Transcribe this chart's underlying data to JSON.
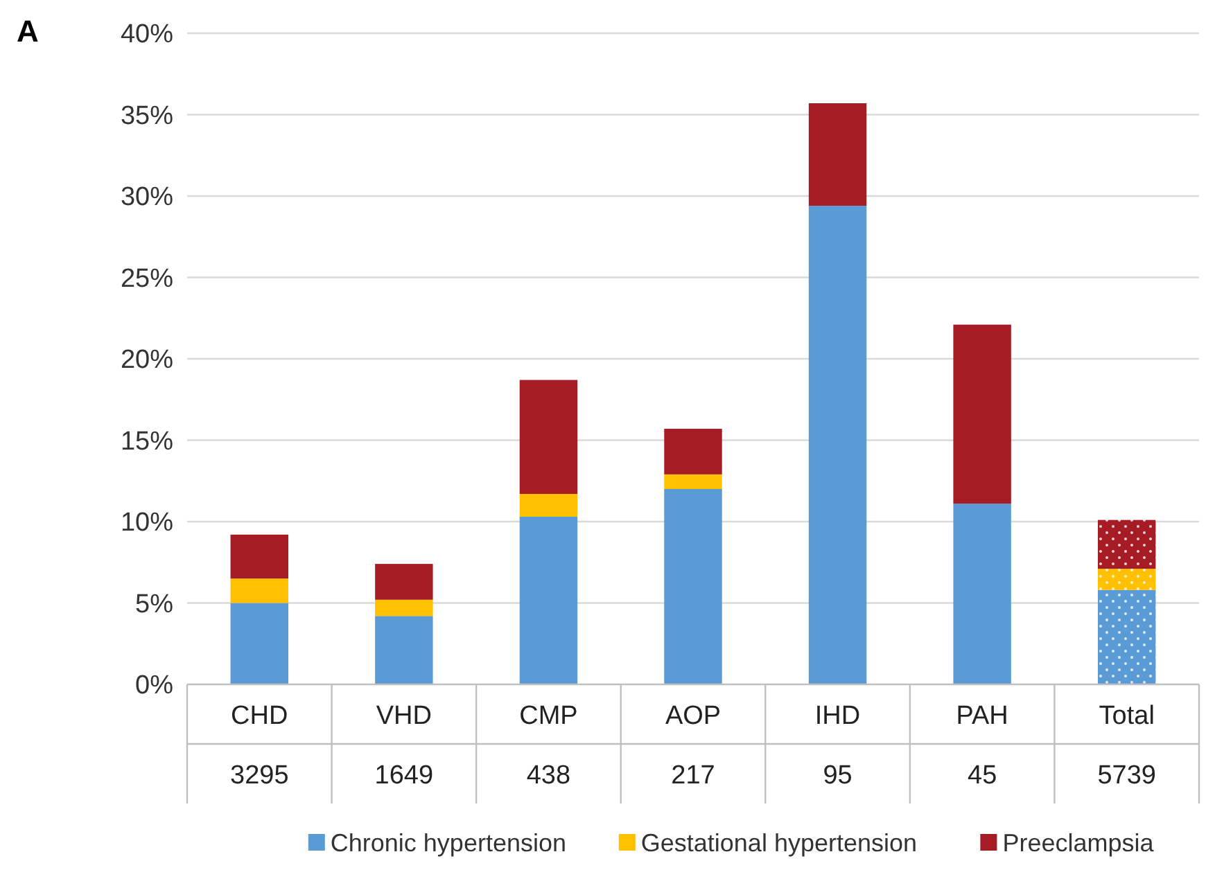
{
  "chart_data": {
    "type": "bar",
    "title": "A",
    "stacked": true,
    "categories": [
      "CHD",
      "VHD",
      "CMP",
      "AOP",
      "IHD",
      "PAH",
      "Total"
    ],
    "series": [
      {
        "name": "Chronic hypertension",
        "color": "#5b9bd5",
        "values": [
          5.0,
          4.2,
          10.3,
          12.0,
          29.4,
          11.1,
          5.8
        ]
      },
      {
        "name": "Gestational hypertension",
        "color": "#ffc000",
        "values": [
          1.5,
          1.0,
          1.4,
          0.9,
          0,
          0,
          1.3
        ]
      },
      {
        "name": "Preeclampsia",
        "color": "#a51c24",
        "values": [
          2.7,
          2.2,
          7.0,
          2.8,
          6.3,
          11.0,
          3.0
        ]
      }
    ],
    "ylim": [
      0,
      40
    ],
    "yticks": [
      {
        "value": 0,
        "label": "0%"
      },
      {
        "value": 5,
        "label": "5%"
      },
      {
        "value": 10,
        "label": "10%"
      },
      {
        "value": 15,
        "label": "15%"
      },
      {
        "value": 20,
        "label": "20%"
      },
      {
        "value": 25,
        "label": "25%"
      },
      {
        "value": 30,
        "label": "30%"
      },
      {
        "value": 35,
        "label": "35%"
      },
      {
        "value": 40,
        "label": "40%"
      }
    ],
    "grid": "y",
    "legend": "bottom",
    "annotations": [
      "3295",
      "1649",
      "438",
      "217",
      "95",
      "45",
      "5739"
    ]
  }
}
